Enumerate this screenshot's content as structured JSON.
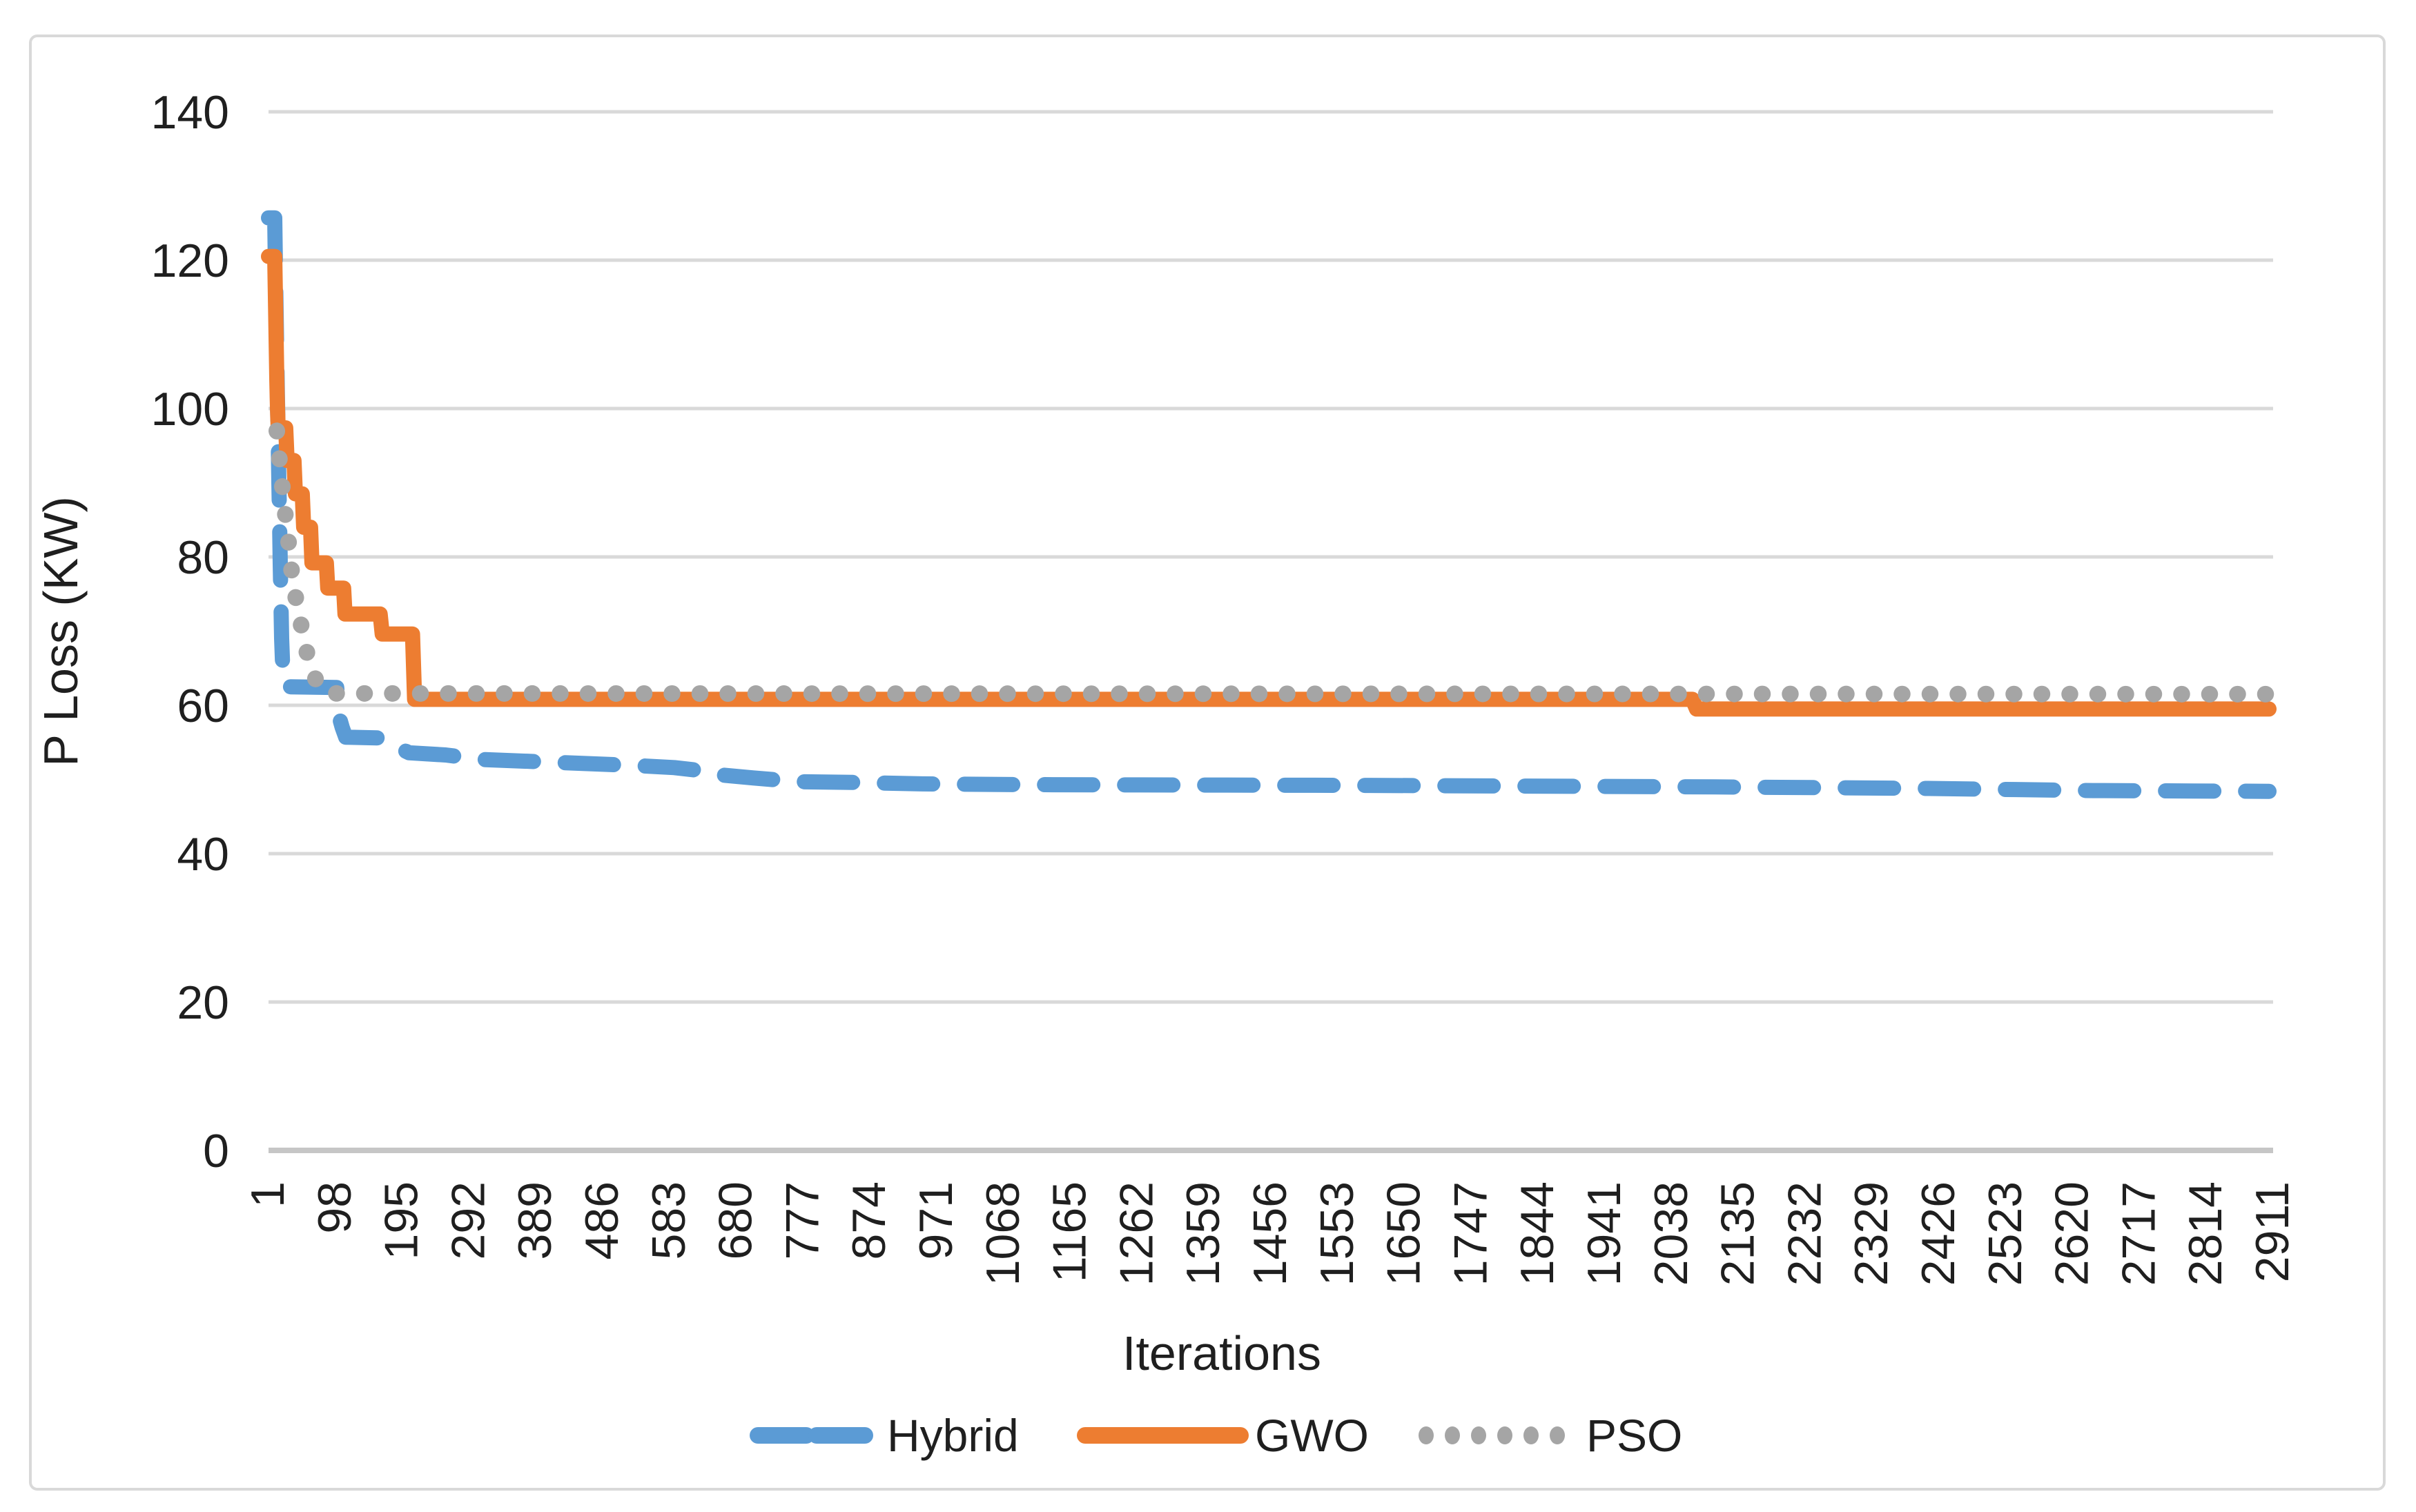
{
  "window": {
    "background_color": "#ffffff",
    "chart_border_color": "#d9d9d9"
  },
  "axes": {
    "y_title": "P Loss (KW)",
    "x_title": "Iterations",
    "y_tick_labels": [
      "0",
      "20",
      "40",
      "60",
      "80",
      "100",
      "120",
      "140"
    ],
    "x_tick_labels": [
      "1",
      "98",
      "195",
      "292",
      "389",
      "486",
      "583",
      "680",
      "777",
      "874",
      "971",
      "1068",
      "1165",
      "1262",
      "1359",
      "1456",
      "1553",
      "1650",
      "1747",
      "1844",
      "1941",
      "2038",
      "2135",
      "2232",
      "2329",
      "2426",
      "2523",
      "2620",
      "2717",
      "2814",
      "2911"
    ]
  },
  "style": {
    "gridline_color": "#d9d9d9",
    "axis_line_color": "#c6c6c6",
    "text_color": "#1f1f1f",
    "hybrid_color": "#5b9bd5",
    "gwo_color": "#ed7d31",
    "pso_color": "#a5a5a5"
  },
  "legend": {
    "items": [
      {
        "label": "Hybrid",
        "style": "dashed",
        "color": "#5b9bd5"
      },
      {
        "label": "GWO",
        "style": "solid",
        "color": "#ed7d31"
      },
      {
        "label": "PSO",
        "style": "dotted",
        "color": "#a5a5a5"
      }
    ]
  },
  "chart_data": {
    "type": "line",
    "title": "",
    "xlabel": "Iterations",
    "ylabel": "P Loss (KW)",
    "xlim": [
      1,
      2911
    ],
    "ylim": [
      0,
      140
    ],
    "y_ticks": [
      0,
      20,
      40,
      60,
      80,
      100,
      120,
      140
    ],
    "x_ticks_start": 1,
    "x_ticks_step": 97,
    "grid": "horizontal",
    "legend_position": "bottom",
    "series": [
      {
        "name": "Hybrid",
        "color": "#5b9bd5",
        "style": "dashed",
        "points": [
          [
            1,
            125.7
          ],
          [
            10,
            125.7
          ],
          [
            11,
            119
          ],
          [
            12,
            113
          ],
          [
            13,
            107
          ],
          [
            14,
            101
          ],
          [
            15,
            96
          ],
          [
            16,
            90
          ],
          [
            17,
            85
          ],
          [
            18,
            79
          ],
          [
            19,
            74
          ],
          [
            20,
            69
          ],
          [
            22,
            64
          ],
          [
            26,
            62.5
          ],
          [
            100,
            62.4
          ],
          [
            104,
            58.3
          ],
          [
            108,
            57.0
          ],
          [
            113,
            55.7
          ],
          [
            160,
            55.6
          ],
          [
            205,
            53.6
          ],
          [
            258,
            53.3
          ],
          [
            310,
            52.7
          ],
          [
            420,
            52.3
          ],
          [
            530,
            51.9
          ],
          [
            590,
            51.6
          ],
          [
            628,
            51.2
          ],
          [
            648,
            50.7
          ],
          [
            705,
            50.2
          ],
          [
            770,
            49.7
          ],
          [
            850,
            49.6
          ],
          [
            950,
            49.4
          ],
          [
            1100,
            49.3
          ],
          [
            1600,
            49.2
          ],
          [
            2100,
            49.0
          ],
          [
            2400,
            48.8
          ],
          [
            2650,
            48.5
          ],
          [
            2905,
            48.4
          ]
        ]
      },
      {
        "name": "GWO",
        "color": "#ed7d31",
        "style": "solid",
        "points": [
          [
            1,
            120.5
          ],
          [
            10,
            120.5
          ],
          [
            11,
            115
          ],
          [
            12,
            109.5
          ],
          [
            13,
            104
          ],
          [
            14,
            100
          ],
          [
            15,
            97.4
          ],
          [
            26,
            97.4
          ],
          [
            28,
            93
          ],
          [
            38,
            93
          ],
          [
            40,
            88.5
          ],
          [
            50,
            88.5
          ],
          [
            52,
            84
          ],
          [
            62,
            84
          ],
          [
            64,
            79.2
          ],
          [
            85,
            79.2
          ],
          [
            87,
            75.8
          ],
          [
            110,
            75.8
          ],
          [
            112,
            72.3
          ],
          [
            163,
            72.3
          ],
          [
            166,
            69.6
          ],
          [
            210,
            69.6
          ],
          [
            213,
            60.8
          ],
          [
            2068,
            60.8
          ],
          [
            2074,
            59.5
          ],
          [
            2905,
            59.5
          ]
        ]
      },
      {
        "name": "PSO",
        "color": "#a5a5a5",
        "style": "dotted",
        "points": [
          [
            13,
            97
          ],
          [
            17,
            93
          ],
          [
            21,
            89.5
          ],
          [
            25,
            86
          ],
          [
            29,
            83
          ],
          [
            33,
            79.5
          ],
          [
            37,
            76
          ],
          [
            43,
            73.5
          ],
          [
            49,
            70.5
          ],
          [
            57,
            67
          ],
          [
            65,
            64.3
          ],
          [
            77,
            62.2
          ],
          [
            95,
            61.6
          ],
          [
            2905,
            61.5
          ]
        ]
      }
    ]
  }
}
